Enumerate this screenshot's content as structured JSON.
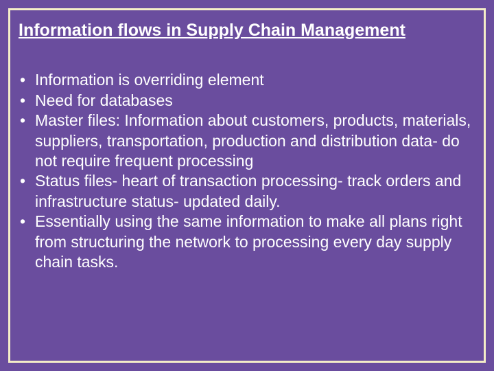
{
  "slide": {
    "background_color": "#6a4d9e",
    "border_color": "#f5eec8",
    "border_width": 3,
    "title": {
      "text": "Information flows in Supply Chain Management",
      "color": "#ffffff",
      "font_size": 25,
      "font_weight": "bold",
      "underline": true
    },
    "bullets": {
      "color": "#ffffff",
      "font_size": 23,
      "marker": "•",
      "items": [
        "Information is overriding element",
        "Need for databases",
        "Master files: Information about customers, products, materials, suppliers, transportation, production and distribution data- do not require frequent processing",
        "Status files- heart of transaction processing- track orders and infrastructure status- updated daily.",
        "Essentially using the same information to make all plans right from structuring the network to processing every day supply chain tasks."
      ]
    }
  }
}
